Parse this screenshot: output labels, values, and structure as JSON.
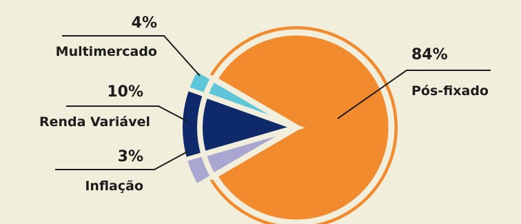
{
  "chart_data": {
    "type": "pie",
    "slices": [
      {
        "label": "Pós-fixado",
        "percent_text": "84%",
        "value": 84,
        "color": "#f28a2e"
      },
      {
        "label": "Inflação",
        "percent_text": "3%",
        "value": 3,
        "color": "#5ec6d9"
      },
      {
        "label": "Renda Variável",
        "percent_text": "10%",
        "value": 10,
        "color": "#0e2a6b"
      },
      {
        "label": "Multimercado",
        "percent_text": "4%",
        "value": 4,
        "color": "#a9a6d1"
      }
    ],
    "legend": "callouts",
    "title": ""
  }
}
